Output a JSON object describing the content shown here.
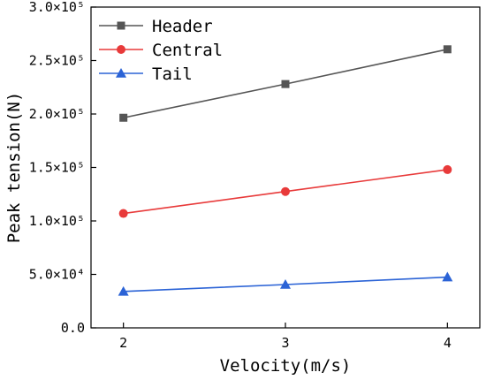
{
  "chart_data": {
    "type": "line",
    "x": [
      2,
      3,
      4
    ],
    "xlabel": "Velocity(m/s)",
    "ylabel": "Peak tension(N)",
    "xticks": [
      {
        "value": 2,
        "label": "2"
      },
      {
        "value": 3,
        "label": "3"
      },
      {
        "value": 4,
        "label": "4"
      }
    ],
    "yticks": [
      {
        "value": 0,
        "label": "0.0"
      },
      {
        "value": 50000,
        "label": "5.0×10⁴"
      },
      {
        "value": 100000,
        "label": "1.0×10⁵"
      },
      {
        "value": 150000,
        "label": "1.5×10⁵"
      },
      {
        "value": 200000,
        "label": "2.0×10⁵"
      },
      {
        "value": 250000,
        "label": "2.5×10⁵"
      },
      {
        "value": 300000,
        "label": "3.0×10⁵"
      }
    ],
    "xlim": [
      1.8,
      4.2
    ],
    "ylim": [
      0,
      300000
    ],
    "grid": false,
    "legend_position": "top-left",
    "series": [
      {
        "name": "Header",
        "values": [
          196500,
          228000,
          260500
        ],
        "color": "#555555",
        "marker": "square"
      },
      {
        "name": "Central",
        "values": [
          107000,
          127500,
          148000
        ],
        "color": "#e83a3a",
        "marker": "circle"
      },
      {
        "name": "Tail",
        "values": [
          34000,
          40500,
          47500
        ],
        "color": "#2b63d6",
        "marker": "triangle"
      }
    ]
  }
}
